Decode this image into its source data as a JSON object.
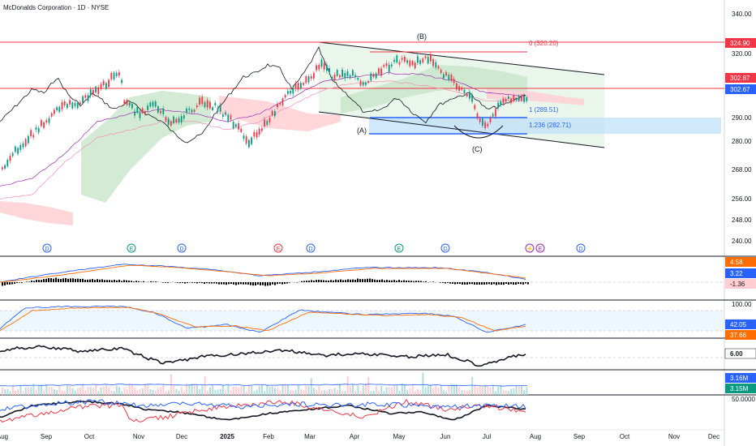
{
  "header": {
    "title": "McDonalds Corporation · 1D · NYSE"
  },
  "colors": {
    "up": "#089981",
    "down": "#f23645",
    "resistance": "#f23645",
    "support": "#2962ff",
    "channel": "#131722",
    "fib": "#f23645",
    "fib_support": "#2962ff",
    "macd": "#2962ff",
    "signal": "#ff6d00",
    "stoch_k": "#2962ff",
    "stoch_d": "#ff6d00"
  },
  "price_axis": {
    "ticks": [
      "340.00",
      "320.00",
      "302.67",
      "290.00",
      "280.00",
      "268.00",
      "256.00",
      "248.00",
      "240.00"
    ],
    "badges": [
      {
        "value": "324.90",
        "color": "#f23645"
      },
      {
        "value": "302.87",
        "color": "#f23645"
      },
      {
        "value": "302.67",
        "color": "#2962ff"
      }
    ]
  },
  "time_axis": {
    "labels": [
      "Aug",
      "Sep",
      "Oct",
      "Nov",
      "Dec",
      "2025",
      "Feb",
      "Mar",
      "Apr",
      "May",
      "Jun",
      "Jul",
      "Aug",
      "Sep",
      "Oct",
      "Nov",
      "Dec"
    ]
  },
  "wave_labels": [
    "(B)",
    "(A)",
    "(C)"
  ],
  "fib_levels": [
    "0 (320.20)",
    "1 (289.51)",
    "1.236 (282.71)"
  ],
  "event_markers": [
    {
      "letter": "D",
      "color": "#2962ff"
    },
    {
      "letter": "E",
      "color": "#089981"
    },
    {
      "letter": "D",
      "color": "#2962ff"
    },
    {
      "letter": "E",
      "color": "#f23645"
    },
    {
      "letter": "D",
      "color": "#2962ff"
    },
    {
      "letter": "E",
      "color": "#089981"
    },
    {
      "letter": "D",
      "color": "#2962ff"
    },
    {
      "letter": "⚡",
      "color": "#9c27b0"
    },
    {
      "letter": "E",
      "color": "#9c27b0"
    },
    {
      "letter": "D",
      "color": "#2962ff"
    }
  ],
  "indicators": {
    "macd": {
      "badges": [
        {
          "value": "4.58",
          "color": "#ff6d00"
        },
        {
          "value": "3.22",
          "color": "#2962ff"
        },
        {
          "value": "-1.36",
          "color": "#ffcdd2"
        }
      ]
    },
    "stoch": {
      "top_label": "100.00",
      "badges": [
        {
          "value": "42.05",
          "color": "#2962ff"
        },
        {
          "value": "37.66",
          "color": "#ff6d00"
        }
      ]
    },
    "osc": {
      "badges": [
        {
          "value": "6.00",
          "color": "#131722"
        }
      ]
    },
    "volume": {
      "badges": [
        {
          "value": "3.16M",
          "color": "#2962ff"
        },
        {
          "value": "3.15M",
          "color": "#089981"
        }
      ]
    },
    "last": {
      "label": "50.0000"
    }
  }
}
